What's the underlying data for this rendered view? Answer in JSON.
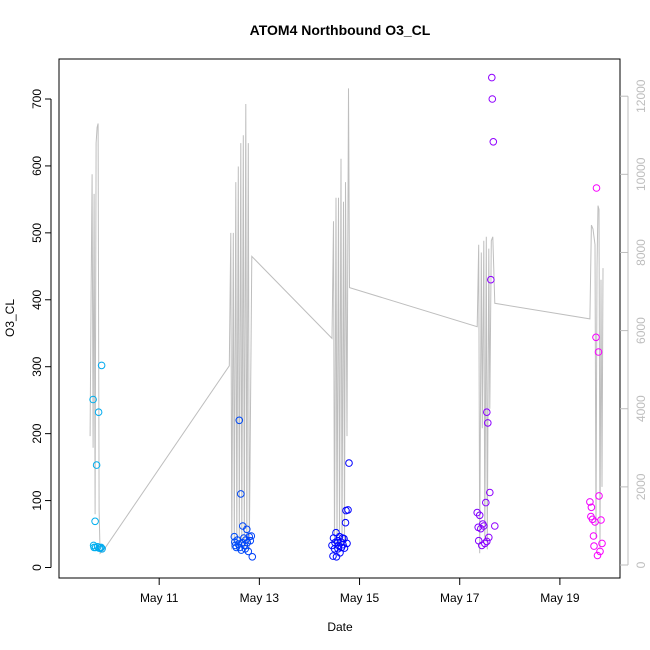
{
  "chart_data": {
    "type": "scatter",
    "title": "ATOM4 Northbound O3_CL",
    "xlabel": "Date",
    "ylabel": "O3_CL",
    "ylim": [
      0,
      730
    ],
    "y_ticks": [
      0,
      100,
      200,
      300,
      400,
      500,
      600,
      700
    ],
    "x_ticks": [
      {
        "label": "May 11",
        "day": 11
      },
      {
        "label": "May 13",
        "day": 13
      },
      {
        "label": "May 15",
        "day": 15
      },
      {
        "label": "May 17",
        "day": 17
      },
      {
        "label": "May 19",
        "day": 19
      }
    ],
    "secondary_axis": {
      "side": "right",
      "ylim": [
        0,
        12200
      ],
      "ticks": [
        0,
        2000,
        4000,
        6000,
        8000,
        10000,
        12000
      ],
      "line_color": "#bebebe"
    },
    "grid": false,
    "legend": "none",
    "point_color_gradient": [
      "#00b2ee",
      "#0000ff",
      "#ff00ff"
    ],
    "series": [
      {
        "values": [
          {
            "x": 9.68,
            "y": 251
          },
          {
            "x": 9.69,
            "y": 33
          },
          {
            "x": 9.7,
            "y": 30
          },
          {
            "x": 9.72,
            "y": 69
          },
          {
            "x": 9.73,
            "y": 30
          },
          {
            "x": 9.75,
            "y": 153
          },
          {
            "x": 9.77,
            "y": 31
          },
          {
            "x": 9.79,
            "y": 232
          },
          {
            "x": 9.8,
            "y": 29
          },
          {
            "x": 9.82,
            "y": 29
          },
          {
            "x": 9.84,
            "y": 30
          },
          {
            "x": 9.85,
            "y": 302
          },
          {
            "x": 9.86,
            "y": 28
          },
          {
            "x": 12.5,
            "y": 46
          },
          {
            "x": 12.51,
            "y": 38
          },
          {
            "x": 12.52,
            "y": 33
          },
          {
            "x": 12.54,
            "y": 30
          },
          {
            "x": 12.56,
            "y": 41
          },
          {
            "x": 12.58,
            "y": 35
          },
          {
            "x": 12.6,
            "y": 220
          },
          {
            "x": 12.61,
            "y": 30
          },
          {
            "x": 12.63,
            "y": 110
          },
          {
            "x": 12.64,
            "y": 26
          },
          {
            "x": 12.66,
            "y": 37
          },
          {
            "x": 12.67,
            "y": 62
          },
          {
            "x": 12.69,
            "y": 44
          },
          {
            "x": 12.7,
            "y": 33
          },
          {
            "x": 12.72,
            "y": 28
          },
          {
            "x": 12.73,
            "y": 41
          },
          {
            "x": 12.75,
            "y": 57
          },
          {
            "x": 12.76,
            "y": 37
          },
          {
            "x": 12.78,
            "y": 24
          },
          {
            "x": 12.8,
            "y": 46
          },
          {
            "x": 12.82,
            "y": 40
          },
          {
            "x": 12.84,
            "y": 47
          },
          {
            "x": 12.86,
            "y": 16
          },
          {
            "x": 14.45,
            "y": 33
          },
          {
            "x": 14.47,
            "y": 17
          },
          {
            "x": 14.48,
            "y": 44
          },
          {
            "x": 14.5,
            "y": 28
          },
          {
            "x": 14.51,
            "y": 37
          },
          {
            "x": 14.53,
            "y": 52
          },
          {
            "x": 14.54,
            "y": 16
          },
          {
            "x": 14.56,
            "y": 40
          },
          {
            "x": 14.57,
            "y": 28
          },
          {
            "x": 14.58,
            "y": 33
          },
          {
            "x": 14.6,
            "y": 46
          },
          {
            "x": 14.61,
            "y": 22
          },
          {
            "x": 14.63,
            "y": 38
          },
          {
            "x": 14.64,
            "y": 30
          },
          {
            "x": 14.66,
            "y": 44
          },
          {
            "x": 14.67,
            "y": 34
          },
          {
            "x": 14.69,
            "y": 43
          },
          {
            "x": 14.7,
            "y": 29
          },
          {
            "x": 14.72,
            "y": 67
          },
          {
            "x": 14.73,
            "y": 85
          },
          {
            "x": 14.75,
            "y": 36
          },
          {
            "x": 14.77,
            "y": 86
          },
          {
            "x": 14.79,
            "y": 156
          },
          {
            "x": 17.35,
            "y": 82
          },
          {
            "x": 17.37,
            "y": 60
          },
          {
            "x": 17.38,
            "y": 40
          },
          {
            "x": 17.4,
            "y": 78
          },
          {
            "x": 17.42,
            "y": 58
          },
          {
            "x": 17.44,
            "y": 33
          },
          {
            "x": 17.46,
            "y": 65
          },
          {
            "x": 17.48,
            "y": 62
          },
          {
            "x": 17.5,
            "y": 36
          },
          {
            "x": 17.52,
            "y": 97
          },
          {
            "x": 17.54,
            "y": 232
          },
          {
            "x": 17.56,
            "y": 216
          },
          {
            "x": 17.58,
            "y": 45
          },
          {
            "x": 17.6,
            "y": 112
          },
          {
            "x": 17.62,
            "y": 430
          },
          {
            "x": 17.64,
            "y": 732
          },
          {
            "x": 17.65,
            "y": 700
          },
          {
            "x": 17.67,
            "y": 636
          },
          {
            "x": 17.7,
            "y": 62
          },
          {
            "x": 17.54,
            "y": 39
          },
          {
            "x": 19.6,
            "y": 98
          },
          {
            "x": 19.62,
            "y": 76
          },
          {
            "x": 19.63,
            "y": 90
          },
          {
            "x": 19.65,
            "y": 72
          },
          {
            "x": 19.67,
            "y": 47
          },
          {
            "x": 19.68,
            "y": 32
          },
          {
            "x": 19.7,
            "y": 68
          },
          {
            "x": 19.72,
            "y": 344
          },
          {
            "x": 19.73,
            "y": 567
          },
          {
            "x": 19.75,
            "y": 18
          },
          {
            "x": 19.77,
            "y": 322
          },
          {
            "x": 19.78,
            "y": 107
          },
          {
            "x": 19.8,
            "y": 24
          },
          {
            "x": 19.82,
            "y": 71
          },
          {
            "x": 19.84,
            "y": 36
          }
        ]
      },
      {
        "axis": "right",
        "type": "line",
        "values": [
          {
            "x": 9.62,
            "y": 3300
          },
          {
            "x": 9.64,
            "y": 7000
          },
          {
            "x": 9.66,
            "y": 10000
          },
          {
            "x": 9.68,
            "y": 3000
          },
          {
            "x": 9.7,
            "y": 9500
          },
          {
            "x": 9.72,
            "y": 1300
          },
          {
            "x": 9.74,
            "y": 10800
          },
          {
            "x": 9.76,
            "y": 11200
          },
          {
            "x": 9.78,
            "y": 11300
          },
          {
            "x": 9.8,
            "y": 1400
          },
          {
            "x": 9.82,
            "y": 300
          },
          {
            "x": 9.9,
            "y": 400
          },
          {
            "x": 12.4,
            "y": 5100
          },
          {
            "x": 12.43,
            "y": 8500
          },
          {
            "x": 12.45,
            "y": 400
          },
          {
            "x": 12.48,
            "y": 8500
          },
          {
            "x": 12.5,
            "y": 600
          },
          {
            "x": 12.53,
            "y": 9800
          },
          {
            "x": 12.55,
            "y": 500
          },
          {
            "x": 12.58,
            "y": 10200
          },
          {
            "x": 12.6,
            "y": 500
          },
          {
            "x": 12.63,
            "y": 10800
          },
          {
            "x": 12.65,
            "y": 500
          },
          {
            "x": 12.68,
            "y": 11000
          },
          {
            "x": 12.7,
            "y": 400
          },
          {
            "x": 12.73,
            "y": 11800
          },
          {
            "x": 12.75,
            "y": 400
          },
          {
            "x": 12.78,
            "y": 10800
          },
          {
            "x": 12.8,
            "y": 400
          },
          {
            "x": 12.85,
            "y": 7900
          },
          {
            "x": 14.45,
            "y": 5800
          },
          {
            "x": 14.48,
            "y": 8800
          },
          {
            "x": 14.5,
            "y": 400
          },
          {
            "x": 14.53,
            "y": 9400
          },
          {
            "x": 14.55,
            "y": 500
          },
          {
            "x": 14.58,
            "y": 9400
          },
          {
            "x": 14.6,
            "y": 500
          },
          {
            "x": 14.63,
            "y": 10400
          },
          {
            "x": 14.65,
            "y": 500
          },
          {
            "x": 14.68,
            "y": 9300
          },
          {
            "x": 14.7,
            "y": 500
          },
          {
            "x": 14.72,
            "y": 9800
          },
          {
            "x": 14.75,
            "y": 3300
          },
          {
            "x": 14.78,
            "y": 12200
          },
          {
            "x": 14.8,
            "y": 7100
          },
          {
            "x": 17.35,
            "y": 6100
          },
          {
            "x": 17.38,
            "y": 8200
          },
          {
            "x": 17.4,
            "y": 300
          },
          {
            "x": 17.43,
            "y": 8000
          },
          {
            "x": 17.45,
            "y": 3500
          },
          {
            "x": 17.48,
            "y": 8300
          },
          {
            "x": 17.5,
            "y": 600
          },
          {
            "x": 17.53,
            "y": 8400
          },
          {
            "x": 17.55,
            "y": 400
          },
          {
            "x": 17.58,
            "y": 8100
          },
          {
            "x": 17.6,
            "y": 4000
          },
          {
            "x": 17.63,
            "y": 8300
          },
          {
            "x": 17.66,
            "y": 8400
          },
          {
            "x": 17.7,
            "y": 6700
          },
          {
            "x": 19.6,
            "y": 6300
          },
          {
            "x": 19.63,
            "y": 8700
          },
          {
            "x": 19.66,
            "y": 8600
          },
          {
            "x": 19.7,
            "y": 8200
          },
          {
            "x": 19.72,
            "y": 700
          },
          {
            "x": 19.74,
            "y": 7600
          },
          {
            "x": 19.76,
            "y": 9200
          },
          {
            "x": 19.78,
            "y": 9100
          },
          {
            "x": 19.8,
            "y": 400
          },
          {
            "x": 19.82,
            "y": 7300
          },
          {
            "x": 19.84,
            "y": 2000
          },
          {
            "x": 19.86,
            "y": 7600
          }
        ]
      }
    ]
  }
}
